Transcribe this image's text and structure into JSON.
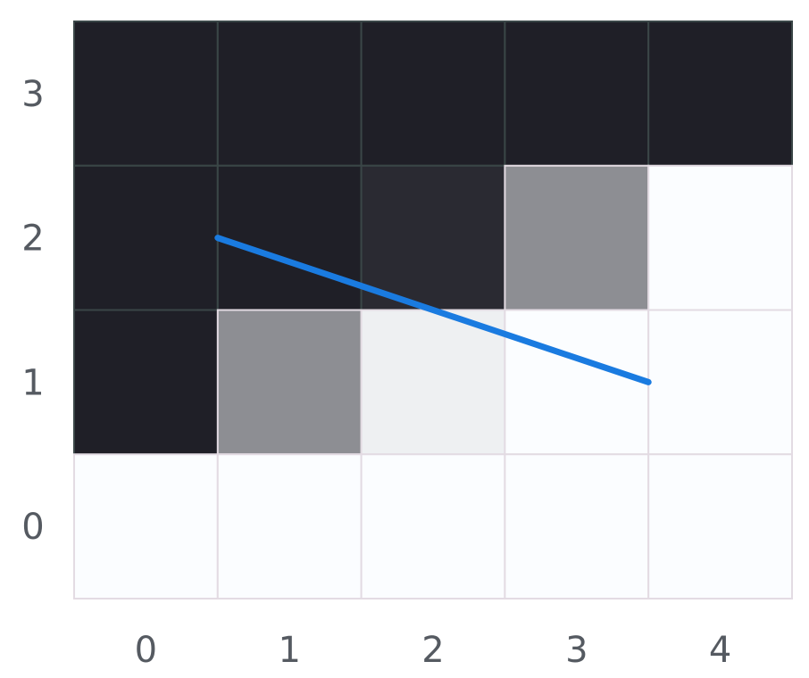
{
  "chart_data": {
    "type": "heatmap",
    "title": "",
    "xlabel": "",
    "ylabel": "",
    "x_ticks": [
      "0",
      "1",
      "2",
      "3",
      "4"
    ],
    "y_ticks": [
      "0",
      "1",
      "2",
      "3"
    ],
    "xlim": [
      -0.5,
      4.5
    ],
    "ylim": [
      -0.5,
      3.5
    ],
    "grid": true,
    "legend": "none",
    "colormap": "grayscale (1 = dark, 0 = white)",
    "values": [
      [
        1.0,
        1.0,
        1.0,
        1.0,
        1.0
      ],
      [
        1.0,
        1.0,
        0.95,
        0.5,
        0.0
      ],
      [
        1.0,
        0.5,
        0.06,
        0.0,
        0.0
      ],
      [
        0.0,
        0.0,
        0.0,
        0.0,
        0.0
      ]
    ],
    "line": {
      "x": [
        0.5,
        3.5
      ],
      "y": [
        2.0,
        1.0
      ],
      "color": "#1a7be0"
    },
    "colors": {
      "dark": "#1f1f27",
      "light": "#fbfdff",
      "grid_on_light": "#e3dbe3",
      "grid_on_dark": "#3a4647",
      "tick_text": "#555a61"
    }
  }
}
